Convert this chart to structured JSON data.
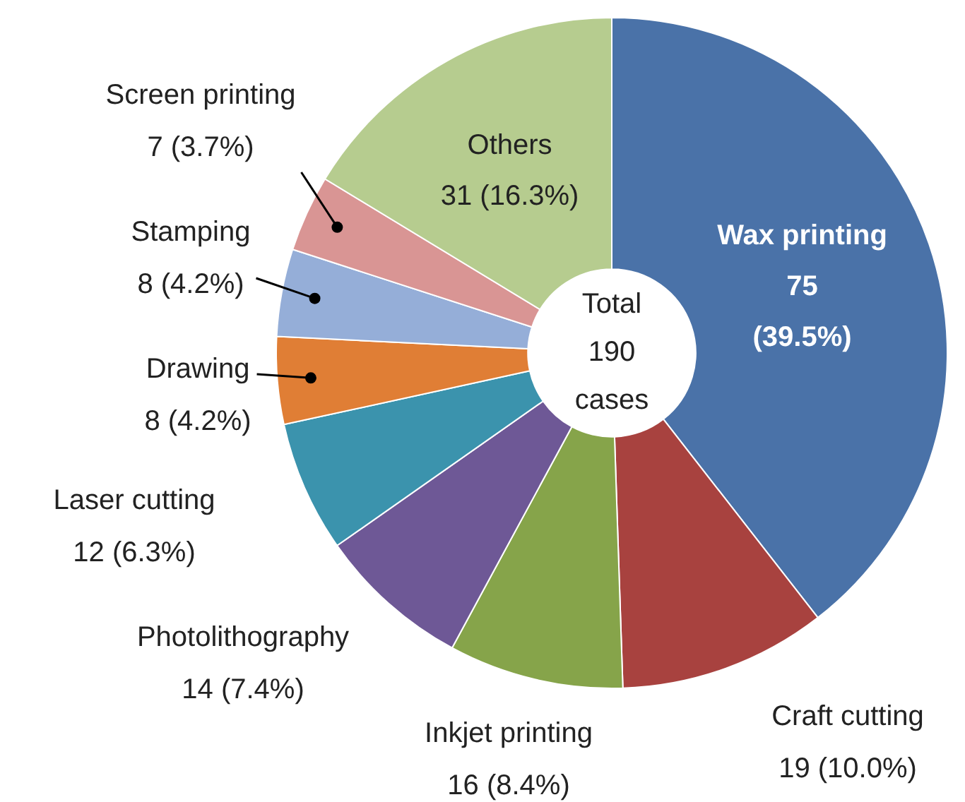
{
  "chart_data": {
    "type": "donut",
    "categories": [
      "Wax printing",
      "Craft cutting",
      "Inkjet printing",
      "Photolithography",
      "Laser cutting",
      "Drawing",
      "Stamping",
      "Screen printing",
      "Others"
    ],
    "values": [
      75,
      19,
      16,
      14,
      12,
      8,
      8,
      7,
      31
    ],
    "colors": [
      "#4a72a8",
      "#a8423f",
      "#86a44a",
      "#6e5896",
      "#3b93ad",
      "#e07e35",
      "#95aed8",
      "#d99594",
      "#b6cc8f"
    ],
    "value_labels": [
      "75 (39.5%)",
      "19 (10.0%)",
      "16 (8.4%)",
      "14 (7.4%)",
      "12 (6.3%)",
      "8 (4.2%)",
      "8 (4.2%)",
      "7 (3.7%)",
      "31 (16.3%)"
    ],
    "annotations": [
      "Total 190 cases"
    ],
    "legend": false
  }
}
